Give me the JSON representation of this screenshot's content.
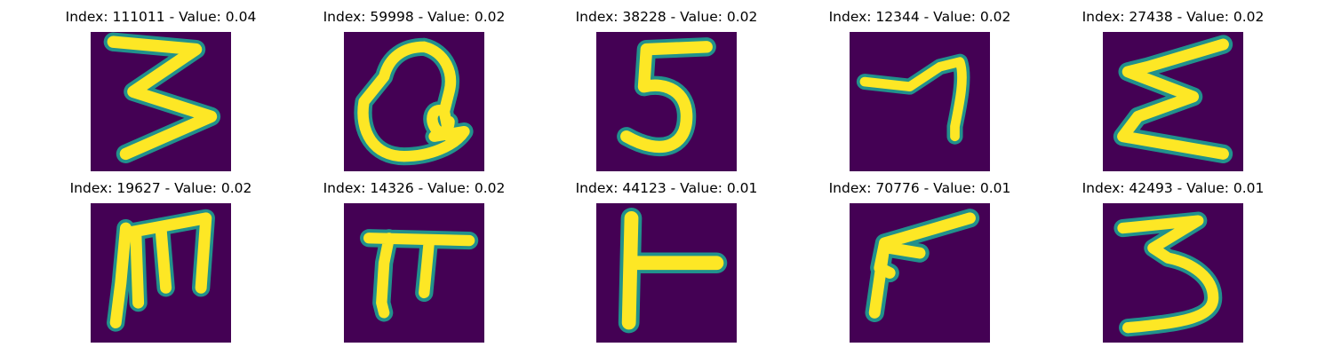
{
  "colors": {
    "background": "#440154",
    "edge": "#21918c",
    "mid": "#5ec962",
    "stroke": "#fde725"
  },
  "panels": [
    {
      "index": "111011",
      "value": "0.04",
      "title": "Index: 111011 - Value: 0.04",
      "glyph": "3-shaped handwritten character"
    },
    {
      "index": "59998",
      "value": "0.02",
      "title": "Index: 59998 - Value: 0.02",
      "glyph": "looped Q-like character"
    },
    {
      "index": "38228",
      "value": "0.02",
      "title": "Index: 38228 - Value: 0.02",
      "glyph": "5-shaped character"
    },
    {
      "index": "12344",
      "value": "0.02",
      "title": "Index: 12344 - Value: 0.02",
      "glyph": "7-like hooked stroke"
    },
    {
      "index": "27438",
      "value": "0.02",
      "title": "Index: 27438 - Value: 0.02",
      "glyph": "sigma/E-like zigzag"
    },
    {
      "index": "19627",
      "value": "0.02",
      "title": "Index: 19627 - Value: 0.02",
      "glyph": "m-like character with three legs"
    },
    {
      "index": "14326",
      "value": "0.02",
      "title": "Index: 14326 - Value: 0.02",
      "glyph": "pi-shaped character"
    },
    {
      "index": "44123",
      "value": "0.01",
      "title": "Index: 44123 - Value: 0.01",
      "glyph": "sideways T character"
    },
    {
      "index": "70776",
      "value": "0.01",
      "title": "Index: 70776 - Value: 0.01",
      "glyph": "angled P-like stroke"
    },
    {
      "index": "42493",
      "value": "0.01",
      "title": "Index: 42493 - Value: 0.01",
      "glyph": "3-shaped character"
    }
  ]
}
